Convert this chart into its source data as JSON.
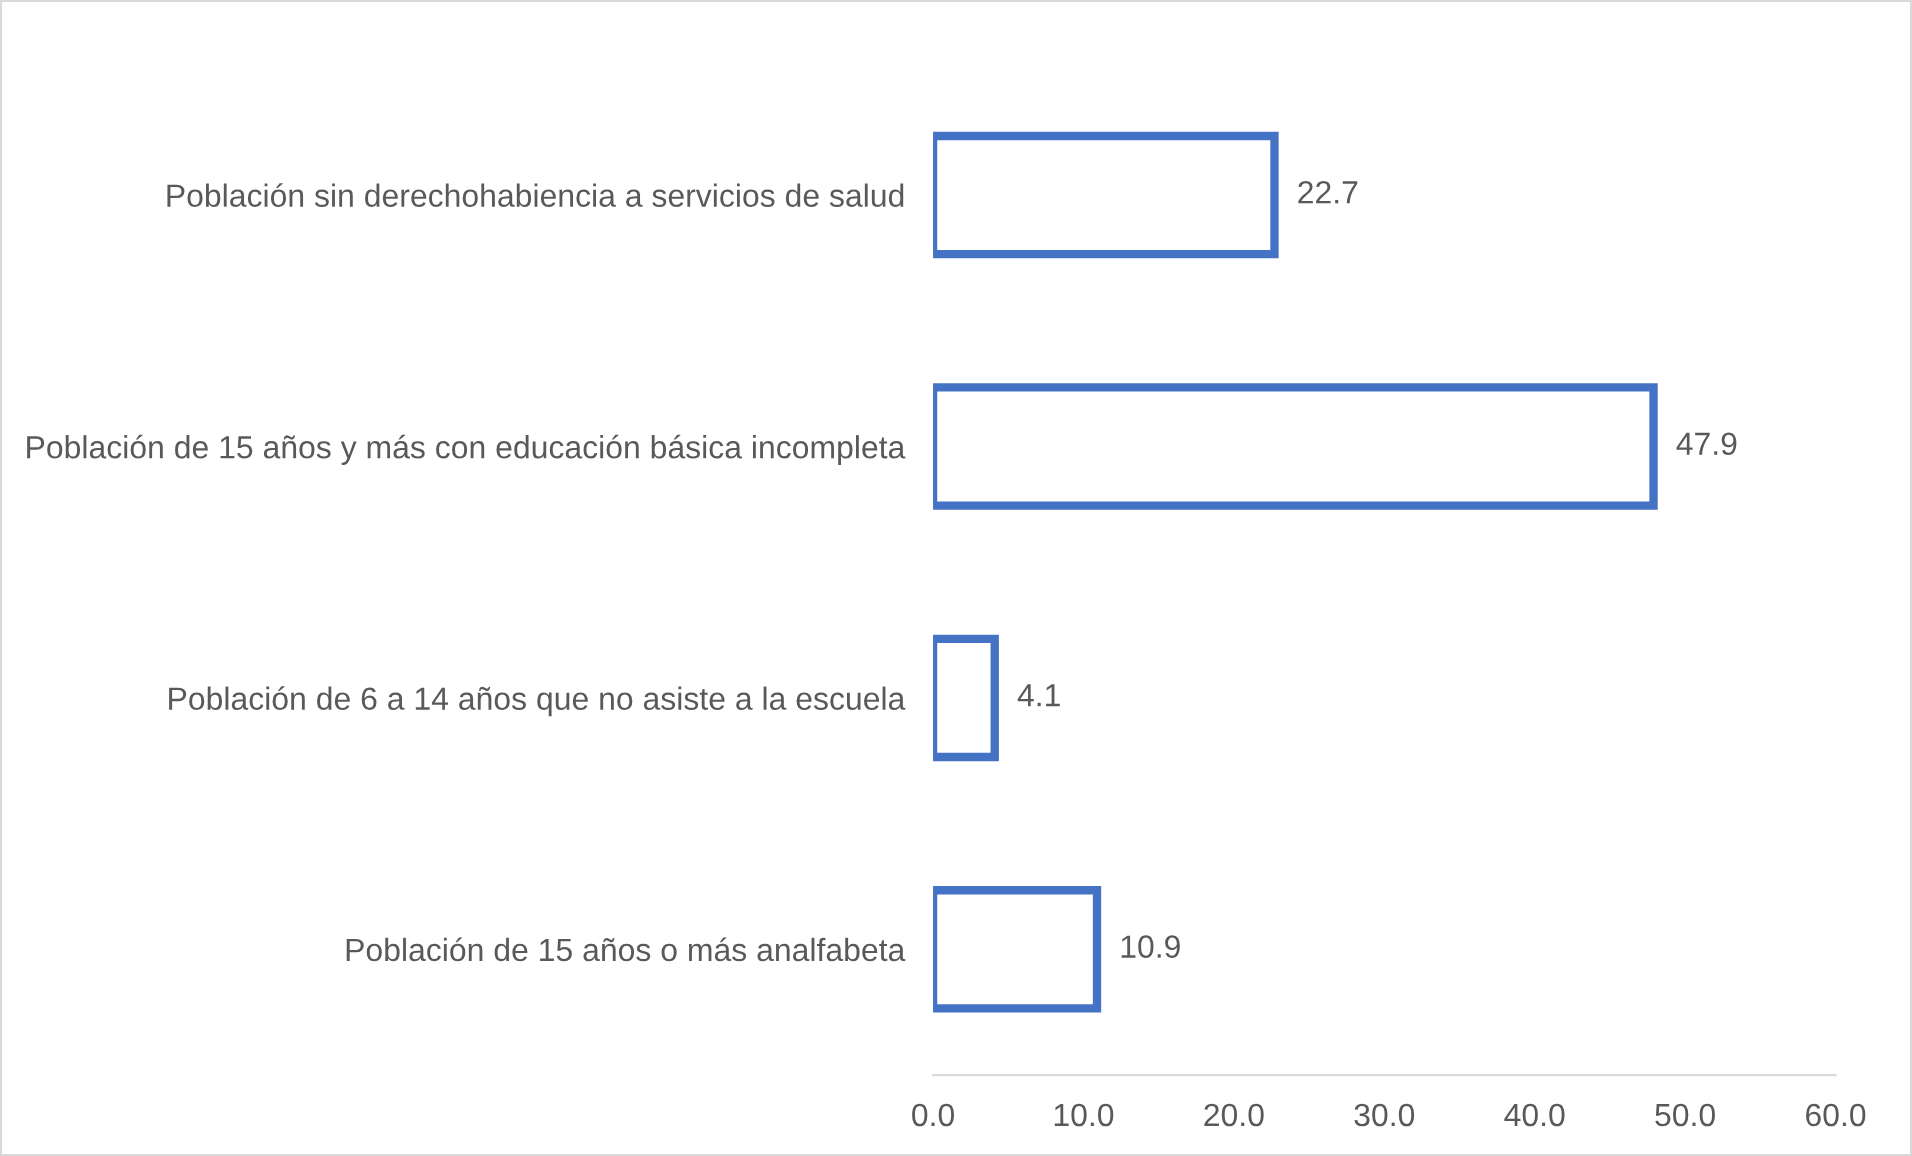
{
  "chart_data": {
    "type": "bar",
    "orientation": "horizontal",
    "categories": [
      "Población sin derechohabiencia a servicios de salud",
      "Población de 15 años y más con educación básica incompleta",
      "Población de 6 a 14 años que no asiste a la escuela",
      "Población de 15 años o más analfabeta"
    ],
    "values": [
      22.7,
      47.9,
      4.1,
      10.9
    ],
    "color": "#4472c4",
    "data_labels": true,
    "xlim": [
      0,
      60
    ],
    "xticks": [
      {
        "value": 0,
        "label": "0.0"
      },
      {
        "value": 10,
        "label": "10.0"
      },
      {
        "value": 20,
        "label": "20.0"
      },
      {
        "value": 30,
        "label": "30.0"
      },
      {
        "value": 40,
        "label": "40.0"
      },
      {
        "value": 50,
        "label": "50.0"
      },
      {
        "value": 60,
        "label": "60.0"
      }
    ],
    "grid": false,
    "legend": false
  }
}
